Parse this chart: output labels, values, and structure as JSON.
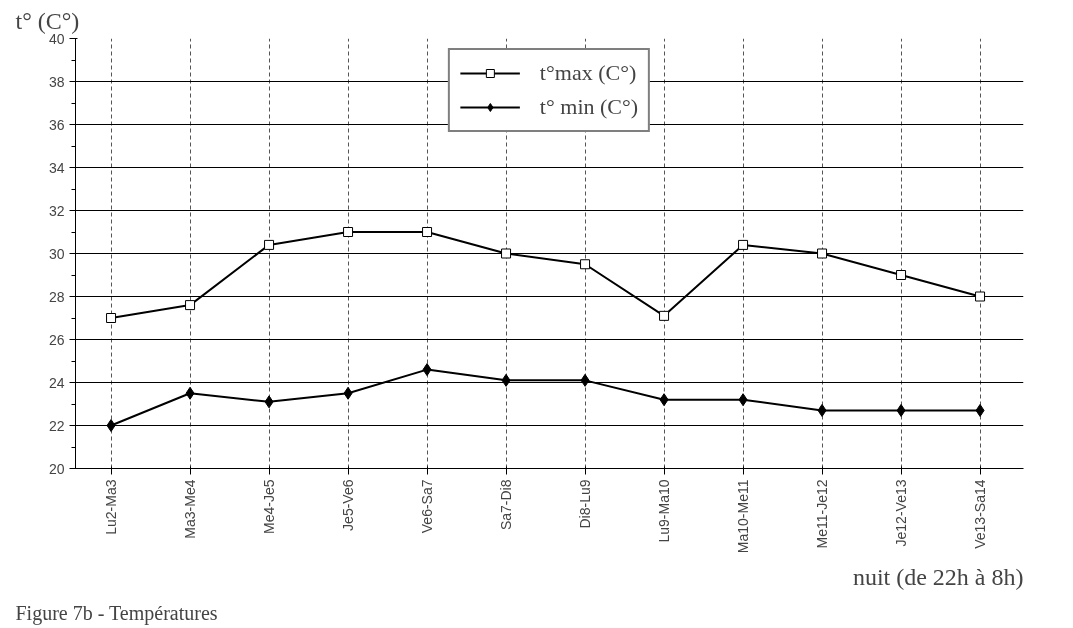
{
  "chart_data": {
    "type": "line",
    "ylabel": "t° (C°)",
    "xlabel": "nuit (de 22h à 8h)",
    "categories": [
      "Lu2-Ma3",
      "Ma3-Me4",
      "Me4-Je5",
      "Je5-Ve6",
      "Ve6-Sa7",
      "Sa7-Di8",
      "Di8-Lu9",
      "Lu9-Ma10",
      "Ma10-Me11",
      "Me11-Je12",
      "Je12-Ve13",
      "Ve13-Sa14"
    ],
    "series": [
      {
        "name": "t°max (C°)",
        "color": "#000000",
        "marker": "square",
        "values": [
          27,
          27.6,
          30.4,
          31,
          31,
          30,
          29.5,
          27.1,
          30.4,
          30,
          29,
          28
        ]
      },
      {
        "name": "t° min (C°)",
        "color": "#000000",
        "marker": "diamond",
        "values": [
          22,
          23.5,
          23.1,
          23.5,
          24.6,
          24.1,
          24.1,
          23.2,
          23.2,
          22.7,
          22.7,
          22.7
        ]
      }
    ],
    "ylim": [
      20,
      40
    ],
    "yticks": [
      20,
      22,
      24,
      26,
      28,
      30,
      32,
      34,
      36,
      38,
      40
    ],
    "grid": true,
    "legend": "top",
    "line_style": "solid",
    "annotations": [
      "Figure 7b - Températures"
    ]
  }
}
